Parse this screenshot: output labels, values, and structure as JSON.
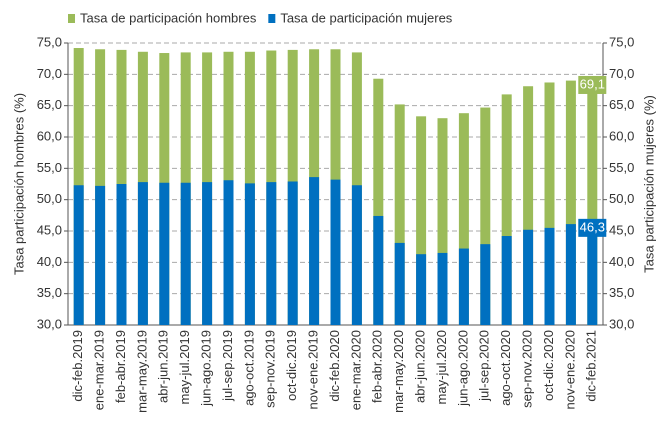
{
  "chart_data": {
    "type": "bar",
    "y_label": "Tasa participación hombres (%)",
    "y2_label": "Tasa participación mujeres (%)",
    "categories": [
      "dic-feb.2019",
      "ene-mar.2019",
      "feb-abr.2019",
      "mar-may.2019",
      "abr-jun.2019",
      "may-jul.2019",
      "jun-ago.2019",
      "jul-sep.2019",
      "ago-oct.2019",
      "sep-nov.2019",
      "oct-dic.2019",
      "nov-ene.2019",
      "dic-feb.2020",
      "ene-mar.2020",
      "feb-abr.2020",
      "mar-may.2020",
      "abr-jun.2020",
      "may-jul.2020",
      "jun-ago.2020",
      "jul-sep.2020",
      "ago-oct.2020",
      "sep-nov.2020",
      "oct-dic.2020",
      "nov-ene.2020",
      "dic-feb.2021"
    ],
    "series": [
      {
        "name": "Tasa de participación hombres",
        "color": "#9bbb59",
        "values": [
          74.2,
          74.0,
          73.9,
          73.6,
          73.4,
          73.5,
          73.5,
          73.6,
          73.6,
          73.8,
          73.9,
          74.0,
          74.0,
          73.5,
          69.3,
          65.2,
          63.3,
          63.0,
          63.8,
          64.7,
          66.8,
          68.1,
          68.7,
          69.0,
          69.1
        ],
        "value_labels": [
          null,
          null,
          null,
          null,
          null,
          null,
          null,
          null,
          null,
          null,
          null,
          null,
          null,
          null,
          null,
          null,
          null,
          null,
          null,
          null,
          null,
          null,
          null,
          null,
          "69,1"
        ]
      },
      {
        "name": "Tasa de participación mujeres",
        "color": "#0070c0",
        "axis": "y2",
        "values": [
          52.3,
          52.2,
          52.5,
          52.8,
          52.7,
          52.7,
          52.8,
          53.1,
          52.6,
          52.8,
          52.9,
          53.6,
          53.2,
          52.3,
          47.4,
          43.1,
          41.3,
          41.5,
          42.2,
          42.9,
          44.2,
          45.2,
          45.5,
          46.1,
          46.3
        ],
        "value_labels": [
          null,
          null,
          null,
          null,
          null,
          null,
          null,
          null,
          null,
          null,
          null,
          null,
          null,
          null,
          null,
          null,
          null,
          null,
          null,
          null,
          null,
          null,
          null,
          null,
          "46,3"
        ]
      }
    ],
    "ylim": [
      30,
      75
    ],
    "yticks": [
      {
        "value": 30,
        "label": "30,0"
      },
      {
        "value": 35,
        "label": "35,0"
      },
      {
        "value": 40,
        "label": "40,0"
      },
      {
        "value": 45,
        "label": "45,0"
      },
      {
        "value": 50,
        "label": "50,0"
      },
      {
        "value": 55,
        "label": "55,0"
      },
      {
        "value": 60,
        "label": "60,0"
      },
      {
        "value": 65,
        "label": "65,0"
      },
      {
        "value": 70,
        "label": "70,0"
      },
      {
        "value": 75,
        "label": "75,0"
      }
    ],
    "y2lim": [
      30,
      75
    ],
    "y2ticks": [
      {
        "value": 30,
        "label": "30,0"
      },
      {
        "value": 35,
        "label": "35,0"
      },
      {
        "value": 40,
        "label": "40,0"
      },
      {
        "value": 45,
        "label": "45,0"
      },
      {
        "value": 50,
        "label": "50,0"
      },
      {
        "value": 55,
        "label": "55,0"
      },
      {
        "value": 60,
        "label": "60,0"
      },
      {
        "value": 65,
        "label": "65,0"
      },
      {
        "value": 70,
        "label": "70,0"
      },
      {
        "value": 75,
        "label": "75,0"
      }
    ],
    "grid": true,
    "legend": "top"
  }
}
